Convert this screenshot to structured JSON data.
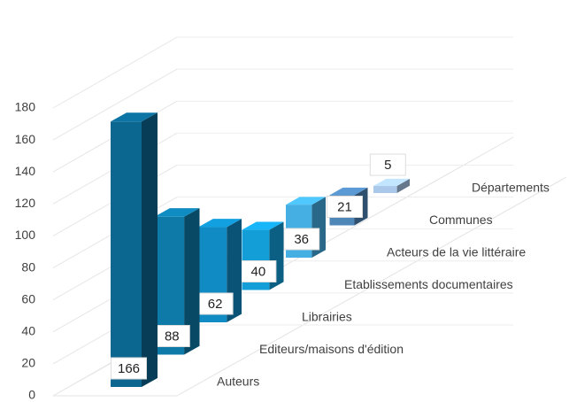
{
  "chart_data": {
    "type": "bar3d",
    "categories": [
      "Auteurs",
      "Editeurs/maisons d'édition",
      "Librairies",
      "Etablissements documentaires",
      "Acteurs de la vie littéraire",
      "Communes",
      "Départements"
    ],
    "values": [
      166,
      88,
      62,
      40,
      36,
      21,
      5
    ],
    "colors": [
      "#0b6690",
      "#0d7aa8",
      "#108bc4",
      "#139ed8",
      "#45aee2",
      "#4f86b8",
      "#a9c8ea"
    ],
    "ylim": [
      0,
      180
    ],
    "yticks": [
      0,
      20,
      40,
      60,
      80,
      100,
      120,
      140,
      160,
      180
    ],
    "grid": true
  }
}
